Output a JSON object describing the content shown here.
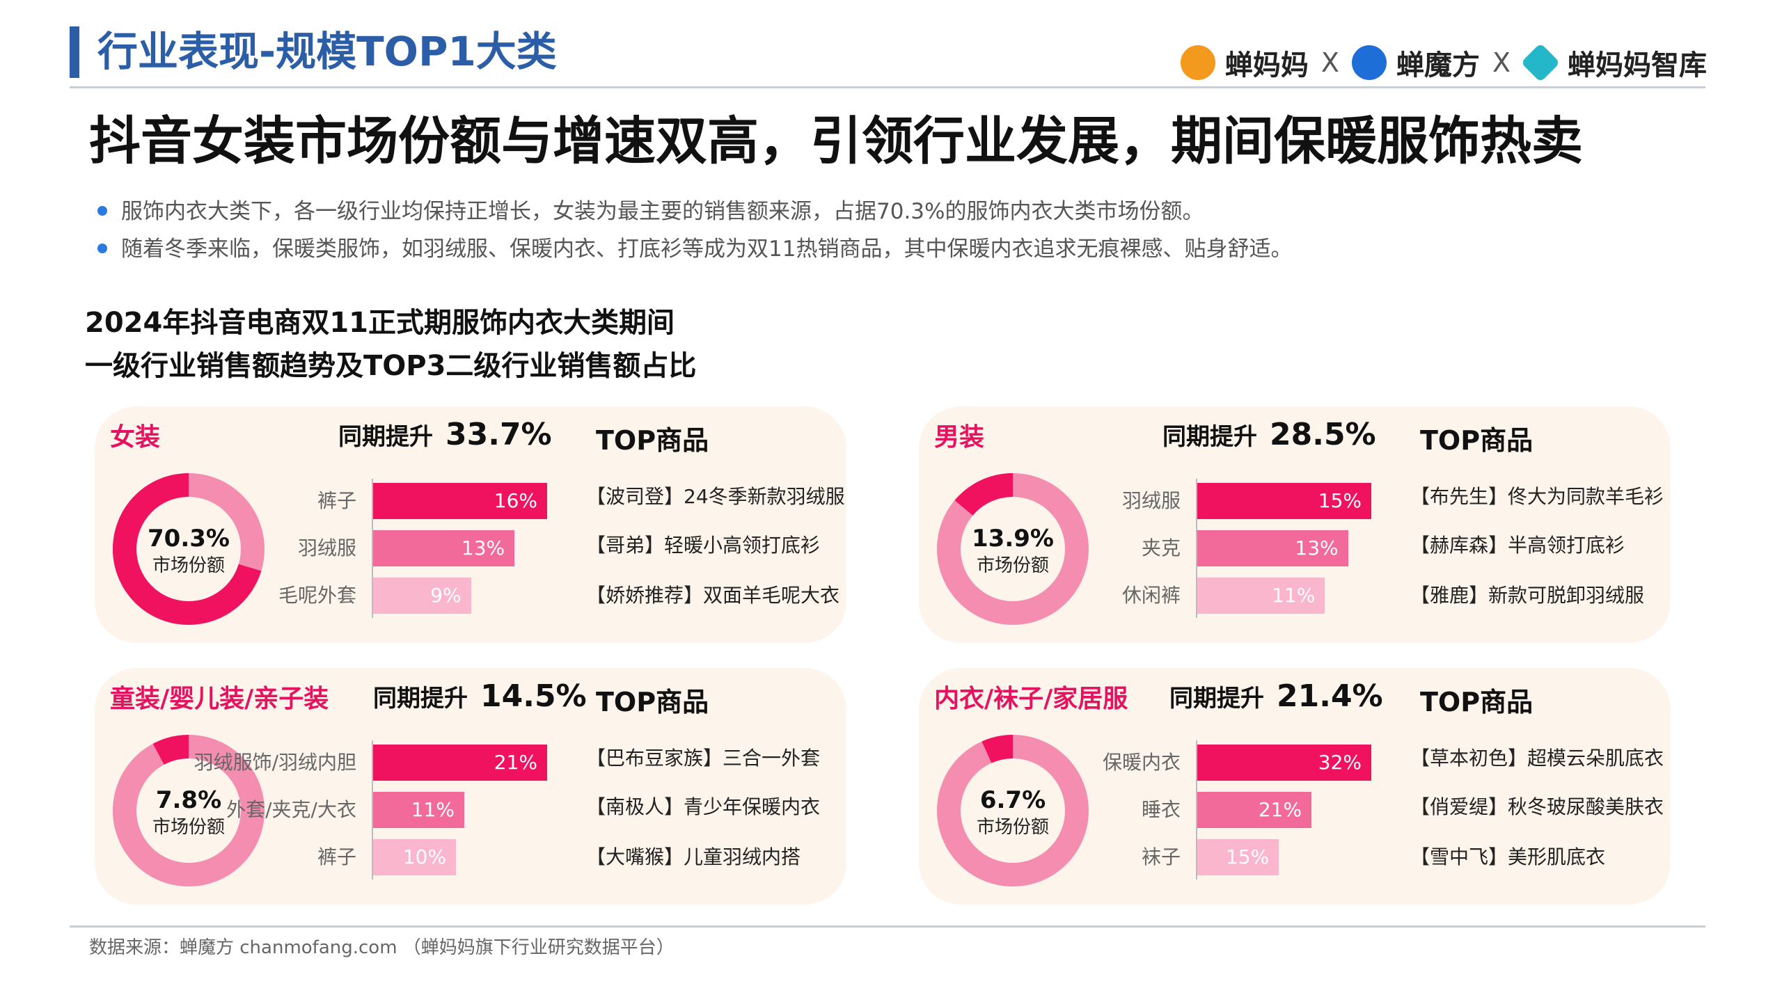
{
  "header": {
    "title": "行业表现-规模TOP1大类",
    "logos": [
      "蝉妈妈",
      "蝉魔方",
      "蝉妈妈智库"
    ],
    "separator": "X"
  },
  "main_title": "抖音女装市场份额与增速双高，引领行业发展，期间保暖服饰热卖",
  "bullets": [
    "服饰内衣大类下，各一级行业均保持正增长，女装为最主要的销售额来源，占据70.3%的服饰内衣大类市场份额。",
    "随着冬季来临，保暖类服饰，如羽绒服、保暖内衣、打底衫等成为双11热销商品，其中保暖内衣追求无痕裸感、贴身舒适。"
  ],
  "chart_title_lines": [
    "2024年抖音电商双11正式期服饰内衣大类期间",
    "一级行业销售额趋势及TOP3二级行业销售额占比"
  ],
  "labels": {
    "growth": "同期提升",
    "top_products": "TOP商品",
    "market_share": "市场份额"
  },
  "colors": {
    "accent": "#e5135f",
    "bar1": "#f0125e",
    "bar2": "#f26a9a",
    "bar3": "#f9b6cd",
    "donut_rest": "#f48db0",
    "panel_bg": "#fdf5ec",
    "header_blue": "#2b5ea7"
  },
  "chart_data": [
    {
      "type": "donut+bar",
      "category": "女装",
      "growth": "33.7%",
      "market_share": 70.3,
      "market_share_label": "70.3%",
      "subcategories": [
        "裤子",
        "羽绒服",
        "毛呢外套"
      ],
      "values": [
        16,
        13,
        9
      ],
      "value_labels": [
        "16%",
        "13%",
        "9%"
      ],
      "top_products": [
        "【波司登】24冬季新款羽绒服",
        "【哥弟】轻暖小高领打底衫",
        "【娇娇推荐】双面羊毛呢大衣"
      ]
    },
    {
      "type": "donut+bar",
      "category": "男装",
      "growth": "28.5%",
      "market_share": 13.9,
      "market_share_label": "13.9%",
      "subcategories": [
        "羽绒服",
        "夹克",
        "休闲裤"
      ],
      "values": [
        15,
        13,
        11
      ],
      "value_labels": [
        "15%",
        "13%",
        "11%"
      ],
      "top_products": [
        "【布先生】佟大为同款羊毛衫",
        "【赫库森】半高领打底衫",
        "【雅鹿】新款可脱卸羽绒服"
      ]
    },
    {
      "type": "donut+bar",
      "category": "童装/婴儿装/亲子装",
      "growth": "14.5%",
      "market_share": 7.8,
      "market_share_label": "7.8%",
      "subcategories": [
        "羽绒服饰/羽绒内胆",
        "外套/夹克/大衣",
        "裤子"
      ],
      "values": [
        21,
        11,
        10
      ],
      "value_labels": [
        "21%",
        "11%",
        "10%"
      ],
      "top_products": [
        "【巴布豆家族】三合一外套",
        "【南极人】青少年保暖内衣",
        "【大嘴猴】儿童羽绒内搭"
      ]
    },
    {
      "type": "donut+bar",
      "category": "内衣/袜子/家居服",
      "growth": "21.4%",
      "market_share": 6.7,
      "market_share_label": "6.7%",
      "subcategories": [
        "保暖内衣",
        "睡衣",
        "袜子"
      ],
      "values": [
        32,
        21,
        15
      ],
      "value_labels": [
        "32%",
        "21%",
        "15%"
      ],
      "top_products": [
        "【草本初色】超模云朵肌底衣",
        "【俏爱缇】秋冬玻尿酸美肤衣",
        "【雪中飞】美形肌底衣"
      ]
    }
  ],
  "footer": {
    "source": "数据来源：蝉魔方 chanmofang.com （蝉妈妈旗下行业研究数据平台）"
  }
}
